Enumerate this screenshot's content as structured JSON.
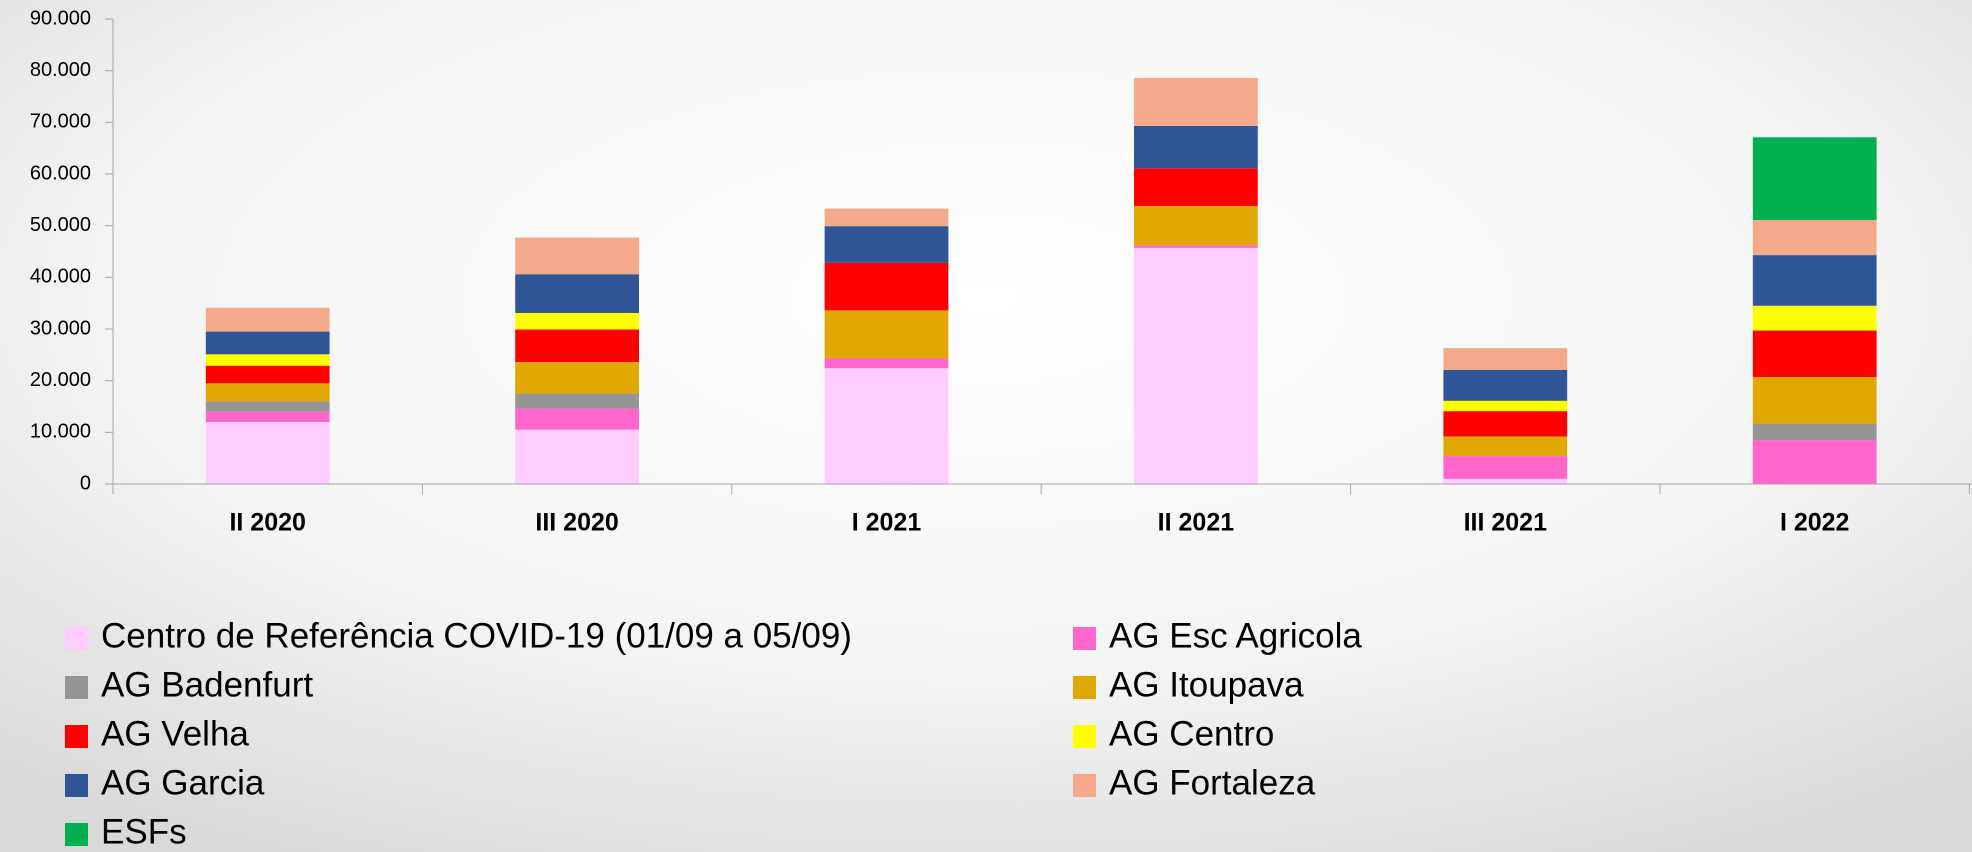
{
  "chart_data": {
    "type": "stacked_bar",
    "categories": [
      "II 2020",
      "III 2020",
      "I 2021",
      "II 2021",
      "III 2021",
      "I 2022"
    ],
    "series": [
      {
        "name": "Centro de Referência COVID-19 (01/09 a 05/09)",
        "color": "#ffccff",
        "values": [
          12000,
          10500,
          22400,
          45700,
          1000,
          0
        ]
      },
      {
        "name": "AG Esc Agricola",
        "color": "#ff66cc",
        "values": [
          2000,
          4100,
          1900,
          500,
          4400,
          8500
        ]
      },
      {
        "name": "AG Badenfurt",
        "color": "#969696",
        "values": [
          2000,
          2900,
          0,
          0,
          0,
          3200
        ]
      },
      {
        "name": "AG Itoupava",
        "color": "#e0a800",
        "values": [
          3500,
          6100,
          9300,
          7600,
          3800,
          9000
        ]
      },
      {
        "name": "AG Velha",
        "color": "#ff0000",
        "values": [
          3400,
          6300,
          9200,
          7300,
          4900,
          9000
        ]
      },
      {
        "name": "AG Centro",
        "color": "#ffff00",
        "values": [
          2200,
          3200,
          0,
          0,
          2000,
          4800
        ]
      },
      {
        "name": "AG Garcia",
        "color": "#2f5597",
        "values": [
          4400,
          7500,
          7100,
          8200,
          6000,
          9800
        ]
      },
      {
        "name": "AG Fortaleza",
        "color": "#f4a98a",
        "values": [
          4600,
          7100,
          3400,
          9300,
          4200,
          6800
        ]
      },
      {
        "name": "ESFs",
        "color": "#00b050",
        "values": [
          0,
          0,
          0,
          0,
          0,
          16000
        ]
      }
    ],
    "ylim": [
      0,
      90000
    ],
    "yticks": [
      0,
      {
        "value": 10000,
        "label": "10.000"
      },
      {
        "value": 20000,
        "label": "20.000"
      },
      {
        "value": 30000,
        "label": "30.000"
      },
      {
        "value": 40000,
        "label": "40.000"
      },
      {
        "value": 50000,
        "label": "50.000"
      },
      {
        "value": 60000,
        "label": "60.000"
      },
      {
        "value": 70000,
        "label": "70.000"
      },
      {
        "value": 80000,
        "label": "80.000"
      },
      {
        "value": 90000,
        "label": "90.000"
      }
    ],
    "legend": "bottom"
  }
}
